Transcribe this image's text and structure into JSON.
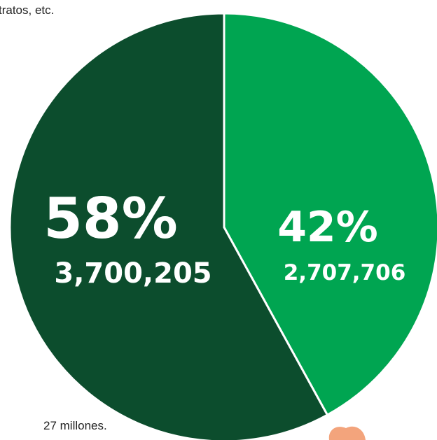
{
  "chart_data": {
    "type": "pie",
    "annotations": [
      "tratos, etc.",
      "27 millones."
    ],
    "values": [
      42,
      58
    ],
    "value_labels": [
      "42%",
      "58%"
    ],
    "counts": [
      2707706,
      3700205
    ],
    "count_labels": [
      "2,707,706",
      "3,700,205"
    ],
    "colors": [
      "#00a551",
      "#0c4d2d"
    ]
  }
}
